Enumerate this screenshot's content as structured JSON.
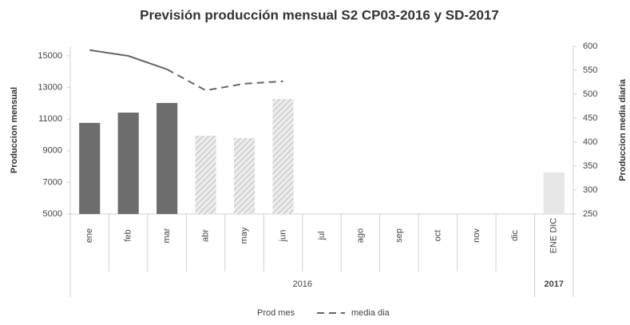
{
  "chart_data": {
    "type": "bar",
    "title": "Previsión producción mensual S2 CP03-2016 y SD-2017",
    "y_label": "Produccion mensual",
    "y2_label": "Produccion media diaria",
    "categories": [
      "ene",
      "feb",
      "mar",
      "abr",
      "may",
      "jun",
      "jul",
      "ago",
      "sep",
      "oct",
      "nov",
      "dic",
      "ENE DIC"
    ],
    "groups": [
      {
        "label": "2016",
        "span": 12
      },
      {
        "label": "2017",
        "span": 1
      }
    ],
    "series": [
      {
        "name": "Prod mes",
        "type": "bar",
        "color": "#6d6d6d",
        "values": [
          10760,
          11410,
          12020,
          9950,
          9800,
          12270,
          null,
          null,
          null,
          null,
          null,
          null,
          7630
        ],
        "styles": [
          "solid",
          "solid",
          "solid",
          "hatched",
          "hatched",
          "hatched",
          null,
          null,
          null,
          null,
          null,
          null,
          "light"
        ]
      },
      {
        "name": "media dia",
        "type": "line",
        "axis": "y2",
        "color": "#666666",
        "values": [
          592,
          580,
          552,
          508,
          522,
          527,
          null,
          null,
          null,
          null,
          null,
          null,
          null
        ],
        "styles": [
          "solid",
          "solid",
          "solid",
          "dashed",
          "dashed",
          "dashed",
          null,
          null,
          null,
          null,
          null,
          null,
          null
        ]
      }
    ],
    "ylim": [
      5000,
      15600
    ],
    "yticks": [
      5000,
      7000,
      9000,
      11000,
      13000,
      15000
    ],
    "y2lim": [
      250,
      600
    ],
    "y2ticks": [
      250,
      300,
      350,
      400,
      450,
      500,
      550,
      600
    ],
    "grid": false,
    "legend": "bottom"
  }
}
